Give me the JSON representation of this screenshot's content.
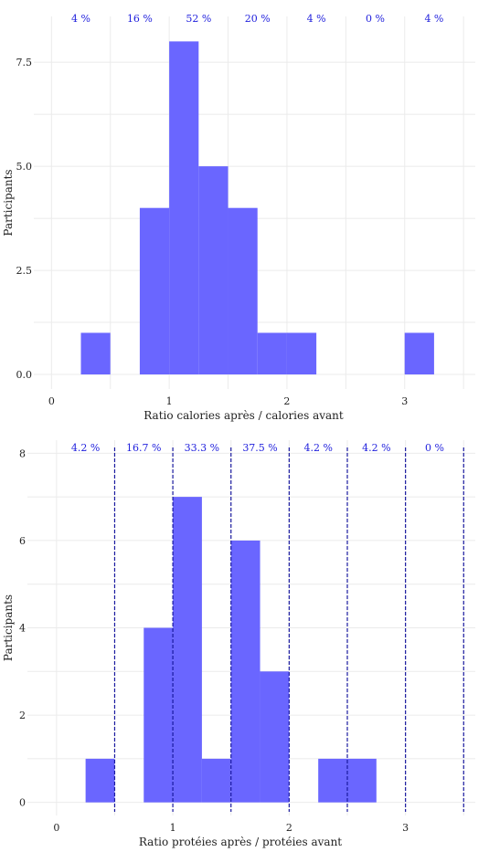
{
  "colors": {
    "bar": "#6a66ff",
    "percent_text": "#2222dd",
    "dashed_line": "#1a1aa0",
    "grid": "#ebebeb"
  },
  "chart_data": [
    {
      "type": "bar",
      "title": "",
      "xlabel": "Ratio calories après / calories avant",
      "ylabel": "Participants",
      "xlim": [
        -0.15,
        3.6
      ],
      "ylim": [
        -0.35,
        8.6
      ],
      "x_ticks": [
        "0",
        "1",
        "2",
        "3"
      ],
      "y_ticks": [
        "0.0",
        "2.5",
        "5.0",
        "7.5"
      ],
      "grid": true,
      "bin_width": 0.25,
      "bins": [
        {
          "x_start": 0.25,
          "count": 1
        },
        {
          "x_start": 0.75,
          "count": 4
        },
        {
          "x_start": 1.0,
          "count": 8
        },
        {
          "x_start": 1.25,
          "count": 5
        },
        {
          "x_start": 1.5,
          "count": 4
        },
        {
          "x_start": 1.75,
          "count": 1
        },
        {
          "x_start": 2.0,
          "count": 1
        },
        {
          "x_start": 3.0,
          "count": 1
        }
      ],
      "interval_labels": [
        {
          "x": 0.25,
          "label": "4 %"
        },
        {
          "x": 0.75,
          "label": "16 %"
        },
        {
          "x": 1.25,
          "label": "52 %"
        },
        {
          "x": 1.75,
          "label": "20 %"
        },
        {
          "x": 2.25,
          "label": "4 %"
        },
        {
          "x": 2.75,
          "label": "0 %"
        },
        {
          "x": 3.25,
          "label": "4 %"
        }
      ],
      "dashed_lines": []
    },
    {
      "type": "bar",
      "title": "",
      "xlabel": "Ratio protéies après / protéies avant",
      "ylabel": "Participants",
      "xlim": [
        -0.25,
        3.6
      ],
      "ylim": [
        -0.3,
        8.3
      ],
      "x_ticks": [
        "0",
        "1",
        "2",
        "3"
      ],
      "y_ticks": [
        "0",
        "2",
        "4",
        "6",
        "8"
      ],
      "grid": true,
      "bin_width": 0.25,
      "bins": [
        {
          "x_start": 0.25,
          "count": 1
        },
        {
          "x_start": 0.75,
          "count": 4
        },
        {
          "x_start": 1.0,
          "count": 7
        },
        {
          "x_start": 1.25,
          "count": 1
        },
        {
          "x_start": 1.5,
          "count": 6
        },
        {
          "x_start": 1.75,
          "count": 3
        },
        {
          "x_start": 2.25,
          "count": 1
        },
        {
          "x_start": 2.5,
          "count": 1
        }
      ],
      "interval_labels": [
        {
          "x": 0.25,
          "label": "4.2 %"
        },
        {
          "x": 0.75,
          "label": "16.7 %"
        },
        {
          "x": 1.25,
          "label": "33.3 %"
        },
        {
          "x": 1.75,
          "label": "37.5 %"
        },
        {
          "x": 2.25,
          "label": "4.2 %"
        },
        {
          "x": 2.75,
          "label": "4.2 %"
        },
        {
          "x": 3.25,
          "label": "0 %"
        }
      ],
      "dashed_lines": [
        0.5,
        1.0,
        1.5,
        2.0,
        2.5,
        3.0,
        3.5
      ]
    }
  ]
}
